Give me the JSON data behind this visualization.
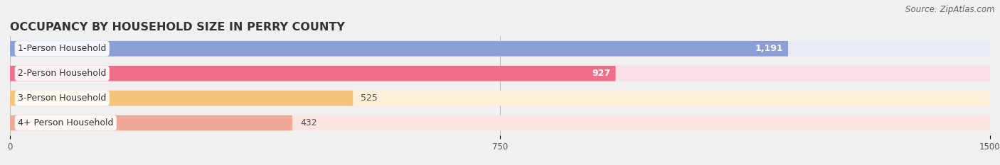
{
  "title": "OCCUPANCY BY HOUSEHOLD SIZE IN PERRY COUNTY",
  "source": "Source: ZipAtlas.com",
  "categories": [
    "1-Person Household",
    "2-Person Household",
    "3-Person Household",
    "4+ Person Household"
  ],
  "values": [
    1191,
    927,
    525,
    432
  ],
  "bar_colors": [
    "#8b9fd4",
    "#f06e8a",
    "#f5c47a",
    "#f0a898"
  ],
  "bar_bg_colors": [
    "#e8ecf5",
    "#f9e0e8",
    "#fdf0d8",
    "#fae4de"
  ],
  "value_labels": [
    "1,191",
    "927",
    "525",
    "432"
  ],
  "value_inside": [
    true,
    true,
    false,
    false
  ],
  "xlim": [
    0,
    1500
  ],
  "xticks": [
    0,
    750,
    1500
  ],
  "title_fontsize": 11.5,
  "source_fontsize": 8.5,
  "label_fontsize": 9,
  "value_fontsize": 9,
  "background_color": "#f0f0f0"
}
